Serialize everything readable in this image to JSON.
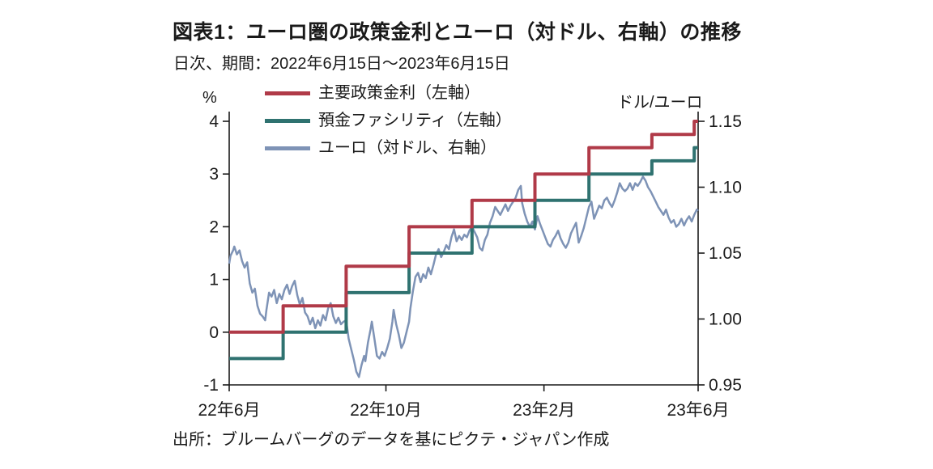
{
  "title": "図表1：ユーロ圏の政策金利とユーロ（対ドル、右軸）の推移",
  "subtitle": "日次、期間：2022年6月15日～2023年6月15日",
  "source": "出所：ブルームバーグのデータを基にピクテ・ジャパン作成",
  "chart_data": {
    "type": "line",
    "title": "図表1：ユーロ圏の政策金利とユーロ（対ドル、右軸）の推移",
    "subtitle": "日次、期間：2022年6月15日～2023年6月15日",
    "grid": false,
    "legend_position": "top-left-stacked",
    "left_axis": {
      "unit_label": "%",
      "ylim": [
        -1,
        4
      ],
      "ticks": [
        {
          "v": 4,
          "label": "4"
        },
        {
          "v": 3,
          "label": "3"
        },
        {
          "v": 2,
          "label": "2"
        },
        {
          "v": 1,
          "label": "1"
        },
        {
          "v": 0,
          "label": "0"
        },
        {
          "v": -1,
          "label": "-1"
        }
      ]
    },
    "right_axis": {
      "unit_label": "ドル/ユーロ",
      "ylim": [
        0.95,
        1.15
      ],
      "ticks": [
        {
          "v": 1.15,
          "label": "1.15"
        },
        {
          "v": 1.1,
          "label": "1.10"
        },
        {
          "v": 1.05,
          "label": "1.05"
        },
        {
          "v": 1.0,
          "label": "1.00"
        },
        {
          "v": 0.95,
          "label": "0.95"
        }
      ]
    },
    "x_axis": {
      "xlim": [
        0,
        365
      ],
      "x_unit": "days from 2022-06-15",
      "ticks": [
        {
          "v": 0,
          "label": "22年6月"
        },
        {
          "v": 122,
          "label": "22年10月"
        },
        {
          "v": 245,
          "label": "23年2月"
        },
        {
          "v": 365,
          "label": "23年6月"
        }
      ]
    },
    "series": [
      {
        "id": "main-policy-rate",
        "name": "主要政策金利（左軸）",
        "axis": "left",
        "color": "#b03a48",
        "width": 4,
        "points": [
          [
            0,
            0
          ],
          [
            42,
            0
          ],
          [
            42,
            0.5
          ],
          [
            91,
            0.5
          ],
          [
            91,
            1.25
          ],
          [
            140,
            1.25
          ],
          [
            140,
            2
          ],
          [
            189,
            2
          ],
          [
            189,
            2.5
          ],
          [
            238,
            2.5
          ],
          [
            238,
            3
          ],
          [
            280,
            3
          ],
          [
            280,
            3.5
          ],
          [
            329,
            3.5
          ],
          [
            329,
            3.75
          ],
          [
            362,
            3.75
          ],
          [
            362,
            4
          ],
          [
            365,
            4
          ]
        ]
      },
      {
        "id": "deposit-facility",
        "name": "預金ファシリティ（左軸）",
        "axis": "left",
        "color": "#2f7270",
        "width": 4,
        "points": [
          [
            0,
            -0.5
          ],
          [
            42,
            -0.5
          ],
          [
            42,
            0
          ],
          [
            91,
            0
          ],
          [
            91,
            0.75
          ],
          [
            140,
            0.75
          ],
          [
            140,
            1.5
          ],
          [
            189,
            1.5
          ],
          [
            189,
            2
          ],
          [
            238,
            2
          ],
          [
            238,
            2.5
          ],
          [
            280,
            2.5
          ],
          [
            280,
            3
          ],
          [
            329,
            3
          ],
          [
            329,
            3.25
          ],
          [
            362,
            3.25
          ],
          [
            362,
            3.5
          ],
          [
            365,
            3.5
          ]
        ]
      },
      {
        "id": "euro-dollar",
        "name": "ユーロ（対ドル、右軸）",
        "axis": "right",
        "color": "#7e93b6",
        "width": 2.5,
        "points": [
          [
            0,
            1.042
          ],
          [
            1,
            1.048
          ],
          [
            3,
            1.052
          ],
          [
            4,
            1.055
          ],
          [
            6,
            1.049
          ],
          [
            8,
            1.052
          ],
          [
            10,
            1.044
          ],
          [
            12,
            1.039
          ],
          [
            14,
            1.043
          ],
          [
            16,
            1.027
          ],
          [
            18,
            1.02
          ],
          [
            20,
            1.023
          ],
          [
            22,
            1.01
          ],
          [
            24,
            1.004
          ],
          [
            26,
            1.002
          ],
          [
            28,
            0.999
          ],
          [
            29,
            1.007
          ],
          [
            31,
            1.02
          ],
          [
            33,
            1.017
          ],
          [
            35,
            1.022
          ],
          [
            37,
            1.012
          ],
          [
            39,
            1.019
          ],
          [
            41,
            1.015
          ],
          [
            43,
            1.022
          ],
          [
            45,
            1.026
          ],
          [
            47,
            1.019
          ],
          [
            49,
            1.025
          ],
          [
            51,
            1.029
          ],
          [
            53,
            1.018
          ],
          [
            55,
            1.011
          ],
          [
            57,
            1.016
          ],
          [
            59,
            1.005
          ],
          [
            61,
            1.002
          ],
          [
            63,
            0.996
          ],
          [
            65,
            1.001
          ],
          [
            67,
            0.993
          ],
          [
            69,
            0.999
          ],
          [
            71,
            0.995
          ],
          [
            73,
            1.003
          ],
          [
            75,
            0.999
          ],
          [
            77,
            1.008
          ],
          [
            79,
            1.012
          ],
          [
            81,
            1.002
          ],
          [
            83,
            0.997
          ],
          [
            85,
            1.001
          ],
          [
            87,
            0.996
          ],
          [
            89,
            0.998
          ],
          [
            91,
            0.999
          ],
          [
            93,
            0.985
          ],
          [
            95,
            0.977
          ],
          [
            97,
            0.969
          ],
          [
            99,
            0.96
          ],
          [
            101,
            0.956
          ],
          [
            103,
            0.965
          ],
          [
            105,
            0.972
          ],
          [
            106,
            0.968
          ],
          [
            108,
            0.982
          ],
          [
            110,
            0.992
          ],
          [
            111,
            0.998
          ],
          [
            113,
            0.985
          ],
          [
            115,
            0.972
          ],
          [
            117,
            0.97
          ],
          [
            119,
            0.975
          ],
          [
            121,
            0.972
          ],
          [
            123,
            0.978
          ],
          [
            125,
            0.985
          ],
          [
            127,
            0.998
          ],
          [
            128,
            1.007
          ],
          [
            130,
            0.996
          ],
          [
            132,
            0.988
          ],
          [
            134,
            0.978
          ],
          [
            136,
            0.982
          ],
          [
            138,
            0.99
          ],
          [
            140,
            0.998
          ],
          [
            141,
            1.008
          ],
          [
            143,
            1.021
          ],
          [
            145,
            1.032
          ],
          [
            147,
            1.035
          ],
          [
            149,
            1.028
          ],
          [
            151,
            1.034
          ],
          [
            153,
            1.031
          ],
          [
            155,
            1.039
          ],
          [
            157,
            1.034
          ],
          [
            159,
            1.041
          ],
          [
            161,
            1.049
          ],
          [
            163,
            1.053
          ],
          [
            165,
            1.047
          ],
          [
            167,
            1.051
          ],
          [
            169,
            1.056
          ],
          [
            171,
            1.053
          ],
          [
            173,
            1.062
          ],
          [
            175,
            1.068
          ],
          [
            177,
            1.059
          ],
          [
            179,
            1.063
          ],
          [
            181,
            1.06
          ],
          [
            183,
            1.064
          ],
          [
            185,
            1.062
          ],
          [
            187,
            1.067
          ],
          [
            189,
            1.07
          ],
          [
            191,
            1.066
          ],
          [
            193,
            1.062
          ],
          [
            195,
            1.054
          ],
          [
            197,
            1.052
          ],
          [
            199,
            1.06
          ],
          [
            201,
            1.064
          ],
          [
            203,
            1.073
          ],
          [
            205,
            1.078
          ],
          [
            207,
            1.085
          ],
          [
            209,
            1.082
          ],
          [
            211,
            1.079
          ],
          [
            213,
            1.083
          ],
          [
            215,
            1.087
          ],
          [
            217,
            1.082
          ],
          [
            219,
            1.086
          ],
          [
            221,
            1.089
          ],
          [
            223,
            1.092
          ],
          [
            225,
            1.098
          ],
          [
            227,
            1.101
          ],
          [
            228,
            1.088
          ],
          [
            230,
            1.08
          ],
          [
            232,
            1.074
          ],
          [
            234,
            1.07
          ],
          [
            236,
            1.074
          ],
          [
            238,
            1.068
          ],
          [
            240,
            1.078
          ],
          [
            242,
            1.072
          ],
          [
            244,
            1.067
          ],
          [
            246,
            1.062
          ],
          [
            248,
            1.057
          ],
          [
            250,
            1.055
          ],
          [
            252,
            1.06
          ],
          [
            254,
            1.063
          ],
          [
            256,
            1.067
          ],
          [
            258,
            1.061
          ],
          [
            260,
            1.057
          ],
          [
            262,
            1.054
          ],
          [
            264,
            1.058
          ],
          [
            266,
            1.065
          ],
          [
            268,
            1.069
          ],
          [
            270,
            1.073
          ],
          [
            272,
            1.058
          ],
          [
            274,
            1.063
          ],
          [
            276,
            1.069
          ],
          [
            278,
            1.077
          ],
          [
            280,
            1.085
          ],
          [
            282,
            1.089
          ],
          [
            284,
            1.076
          ],
          [
            286,
            1.081
          ],
          [
            288,
            1.086
          ],
          [
            290,
            1.084
          ],
          [
            292,
            1.09
          ],
          [
            294,
            1.092
          ],
          [
            296,
            1.088
          ],
          [
            298,
            1.085
          ],
          [
            300,
            1.09
          ],
          [
            302,
            1.096
          ],
          [
            304,
            1.103
          ],
          [
            306,
            1.099
          ],
          [
            308,
            1.097
          ],
          [
            310,
            1.099
          ],
          [
            312,
            1.103
          ],
          [
            314,
            1.098
          ],
          [
            316,
            1.103
          ],
          [
            318,
            1.101
          ],
          [
            320,
            1.104
          ],
          [
            322,
            1.108
          ],
          [
            324,
            1.105
          ],
          [
            326,
            1.1
          ],
          [
            328,
            1.097
          ],
          [
            330,
            1.093
          ],
          [
            332,
            1.089
          ],
          [
            334,
            1.085
          ],
          [
            336,
            1.082
          ],
          [
            338,
            1.079
          ],
          [
            340,
            1.083
          ],
          [
            342,
            1.077
          ],
          [
            344,
            1.073
          ],
          [
            346,
            1.075
          ],
          [
            348,
            1.07
          ],
          [
            350,
            1.072
          ],
          [
            352,
            1.076
          ],
          [
            354,
            1.071
          ],
          [
            356,
            1.075
          ],
          [
            358,
            1.078
          ],
          [
            360,
            1.074
          ],
          [
            362,
            1.079
          ],
          [
            364,
            1.083
          ],
          [
            365,
            1.082
          ]
        ]
      }
    ]
  }
}
